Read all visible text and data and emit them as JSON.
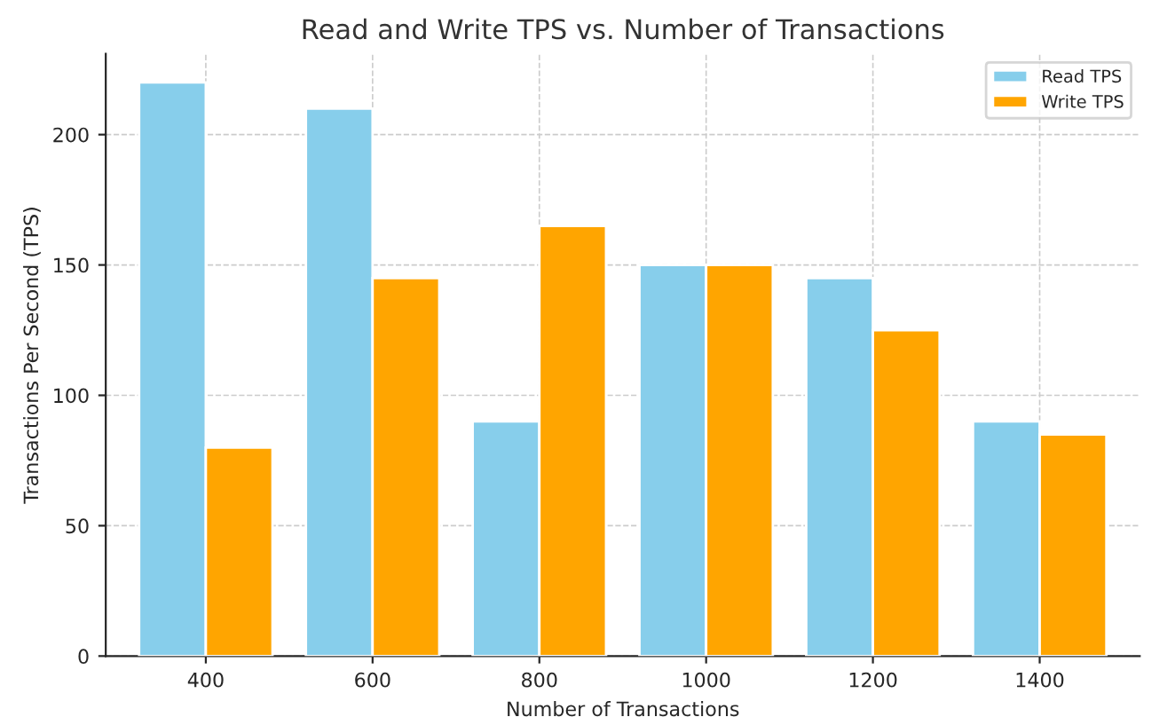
{
  "chart_data": {
    "type": "bar",
    "title": "Read and Write TPS vs. Number of Transactions",
    "xlabel": "Number of Transactions",
    "ylabel": "Transactions Per Second (TPS)",
    "categories": [
      "400",
      "600",
      "800",
      "1000",
      "1200",
      "1400"
    ],
    "series": [
      {
        "name": "Read TPS",
        "color": "#87ceeb",
        "values": [
          220,
          210,
          90,
          150,
          145,
          90
        ]
      },
      {
        "name": "Write TPS",
        "color": "#ffa500",
        "values": [
          80,
          145,
          165,
          150,
          125,
          85
        ]
      }
    ],
    "ylim": [
      0,
      231
    ],
    "yticks": [
      0,
      50,
      100,
      150,
      200
    ],
    "grid": true,
    "legend": "top right"
  }
}
